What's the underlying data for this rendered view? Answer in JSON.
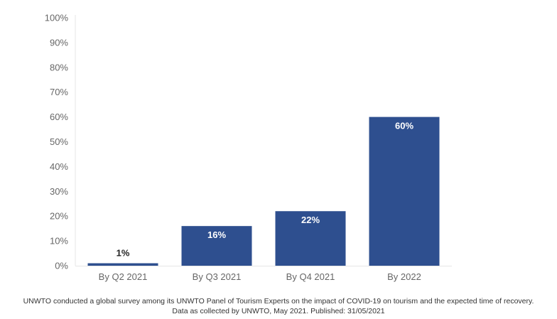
{
  "chart_data": {
    "type": "bar",
    "categories": [
      "By Q2 2021",
      "By Q3 2021",
      "By Q4 2021",
      "By 2022"
    ],
    "values": [
      1,
      16,
      22,
      60
    ],
    "data_labels": [
      "1%",
      "16%",
      "22%",
      "60%"
    ],
    "ylim": [
      0,
      100
    ],
    "y_ticks": [
      0,
      10,
      20,
      30,
      40,
      50,
      60,
      70,
      80,
      90,
      100
    ],
    "y_tick_labels": [
      "0%",
      "10%",
      "20%",
      "30%",
      "40%",
      "50%",
      "60%",
      "70%",
      "80%",
      "90%",
      "100%"
    ],
    "title": "",
    "xlabel": "",
    "ylabel": "",
    "grid": false,
    "legend": "none",
    "bar_color": "#2e4f8f",
    "label_color_inside": "#ffffff",
    "label_color_outside": "#222222"
  },
  "footnote": {
    "line1": "UNWTO conducted a global survey among its UNWTO Panel of Tourism Experts on the impact of COVID-19 on tourism and the expected time of recovery.",
    "line2": "Data as collected by UNWTO, May 2021. Published: 31/05/2021"
  }
}
